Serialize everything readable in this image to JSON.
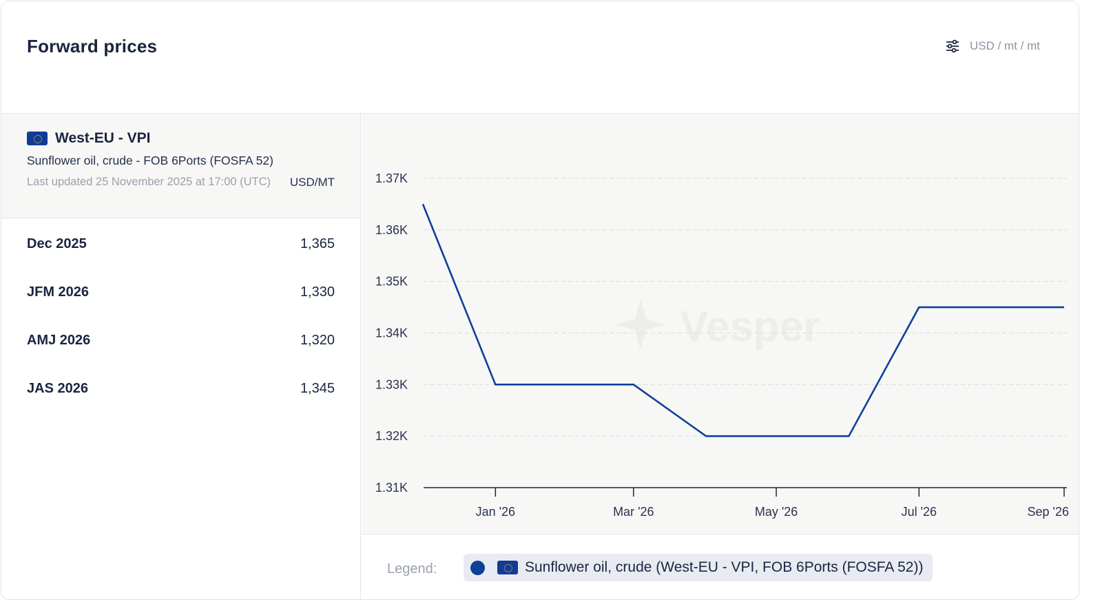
{
  "card": {
    "title": "Forward prices",
    "unit_toggle_label": "USD / mt / mt",
    "unit_toggle_icon": "sliders-icon"
  },
  "instrument": {
    "flag_icon": "eu-flag-icon",
    "name": "West-EU - VPI",
    "description": "Sunflower oil, crude - FOB 6Ports (FOSFA 52)",
    "last_updated": "Last updated 25 November 2025 at 17:00 (UTC)",
    "unit": "USD/MT"
  },
  "rows": [
    {
      "period": "Dec 2025",
      "price": "1,365"
    },
    {
      "period": "JFM 2026",
      "price": "1,330"
    },
    {
      "period": "AMJ 2026",
      "price": "1,320"
    },
    {
      "period": "JAS 2026",
      "price": "1,345"
    }
  ],
  "legend": {
    "label": "Legend:",
    "series_label": "Sunflower oil, crude (West-EU - VPI, FOB 6Ports (FOSFA 52))"
  },
  "watermark": "Vesper",
  "colors": {
    "line": "#0e3f99",
    "grid": "#dcdcdc",
    "plot_bg": "#f7f7f6"
  },
  "chart_data": {
    "type": "line",
    "title": "",
    "xlabel": "",
    "ylabel": "",
    "x_tick_labels": [
      "Jan '26",
      "Mar '26",
      "May '26",
      "Jul '26",
      "Sep '26"
    ],
    "x_tick_dates": [
      "2026-01-01",
      "2026-03-01",
      "2026-05-01",
      "2026-07-01",
      "2026-09-01"
    ],
    "y_tick_labels": [
      "1.31K",
      "1.32K",
      "1.33K",
      "1.34K",
      "1.35K",
      "1.36K",
      "1.37K"
    ],
    "y_ticks": [
      1310,
      1320,
      1330,
      1340,
      1350,
      1360,
      1370
    ],
    "ylim": [
      1310,
      1370
    ],
    "xlim": [
      "2025-12-01",
      "2026-09-01"
    ],
    "grid": true,
    "series": [
      {
        "name": "Sunflower oil, crude (West-EU - VPI, FOB 6Ports (FOSFA 52))",
        "x": [
          "2025-12-01",
          "2026-01-01",
          "2026-03-01",
          "2026-04-01",
          "2026-06-01",
          "2026-07-01",
          "2026-09-01"
        ],
        "y": [
          1365,
          1330,
          1330,
          1320,
          1320,
          1345,
          1345
        ]
      }
    ]
  }
}
